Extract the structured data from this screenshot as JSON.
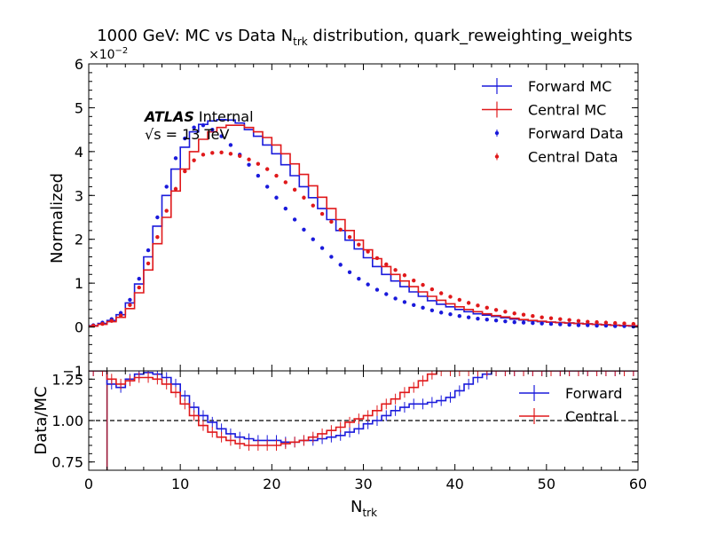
{
  "chart_data": {
    "type": "line",
    "title": "1000 GeV: MC vs Data N",
    "title_sub": "trk",
    "title_suffix": " distribution, quark_reweighting_weights",
    "x_label": "N",
    "x_label_sub": "trk",
    "atlas_label": "ATLAS",
    "atlas_suffix": "Internal",
    "energy_label": "√s = 13 TeV",
    "x_ticks": [
      "0",
      "10",
      "20",
      "30",
      "40",
      "50",
      "60"
    ],
    "xlim": [
      0,
      60
    ],
    "top_panel": {
      "ylabel": "Normalized",
      "y_multiplier": "×10",
      "y_multiplier_exp": "−2",
      "ylim": [
        -1,
        6
      ],
      "y_ticks": [
        "−1",
        "0",
        "1",
        "2",
        "3",
        "4",
        "5",
        "6"
      ],
      "legend_position": "top-right",
      "legend": [
        "Forward MC",
        "Central MC",
        "Forward Data",
        "Central Data"
      ],
      "series": [
        {
          "name": "Forward MC",
          "kind": "step",
          "color": "#1a1adb",
          "values": [
            0.03,
            0.08,
            0.15,
            0.28,
            0.55,
            0.98,
            1.6,
            2.3,
            3.0,
            3.6,
            4.1,
            4.45,
            4.62,
            4.7,
            4.73,
            4.72,
            4.65,
            4.5,
            4.35,
            4.15,
            3.95,
            3.7,
            3.45,
            3.2,
            2.95,
            2.7,
            2.45,
            2.2,
            1.98,
            1.78,
            1.58,
            1.38,
            1.2,
            1.05,
            0.92,
            0.8,
            0.7,
            0.6,
            0.52,
            0.46,
            0.4,
            0.35,
            0.3,
            0.27,
            0.24,
            0.21,
            0.18,
            0.16,
            0.14,
            0.12,
            0.11,
            0.1,
            0.09,
            0.08,
            0.07,
            0.06,
            0.05,
            0.04,
            0.03,
            0.02
          ]
        },
        {
          "name": "Central MC",
          "kind": "step",
          "color": "#e0191b",
          "values": [
            0.02,
            0.06,
            0.12,
            0.22,
            0.42,
            0.78,
            1.3,
            1.9,
            2.5,
            3.1,
            3.6,
            4.0,
            4.28,
            4.45,
            4.55,
            4.6,
            4.6,
            4.55,
            4.45,
            4.32,
            4.15,
            3.95,
            3.72,
            3.48,
            3.22,
            2.96,
            2.7,
            2.45,
            2.2,
            1.98,
            1.76,
            1.56,
            1.38,
            1.2,
            1.05,
            0.92,
            0.8,
            0.7,
            0.61,
            0.53,
            0.46,
            0.4,
            0.35,
            0.3,
            0.26,
            0.23,
            0.2,
            0.17,
            0.15,
            0.13,
            0.11,
            0.1,
            0.09,
            0.08,
            0.07,
            0.06,
            0.05,
            0.04,
            0.03,
            0.03
          ]
        },
        {
          "name": "Forward Data",
          "kind": "points",
          "color": "#1a1adb",
          "values": [
            0.04,
            0.1,
            0.18,
            0.32,
            0.62,
            1.1,
            1.75,
            2.5,
            3.2,
            3.85,
            4.3,
            4.55,
            4.6,
            4.5,
            4.35,
            4.15,
            3.93,
            3.7,
            3.45,
            3.2,
            2.95,
            2.7,
            2.45,
            2.22,
            2.0,
            1.8,
            1.6,
            1.42,
            1.25,
            1.1,
            0.97,
            0.85,
            0.75,
            0.65,
            0.57,
            0.5,
            0.44,
            0.38,
            0.33,
            0.29,
            0.25,
            0.22,
            0.19,
            0.17,
            0.15,
            0.13,
            0.11,
            0.1,
            0.09,
            0.08,
            0.07,
            0.06,
            0.05,
            0.04,
            0.04,
            0.03,
            0.03,
            0.02,
            0.02,
            0.01
          ]
        },
        {
          "name": "Central Data",
          "kind": "points",
          "color": "#e0191b",
          "values": [
            0.03,
            0.07,
            0.14,
            0.26,
            0.5,
            0.9,
            1.45,
            2.05,
            2.65,
            3.15,
            3.55,
            3.8,
            3.93,
            3.97,
            3.98,
            3.95,
            3.9,
            3.82,
            3.72,
            3.6,
            3.45,
            3.3,
            3.13,
            2.95,
            2.77,
            2.58,
            2.4,
            2.22,
            2.05,
            1.88,
            1.72,
            1.57,
            1.43,
            1.3,
            1.18,
            1.06,
            0.96,
            0.86,
            0.77,
            0.69,
            0.62,
            0.55,
            0.49,
            0.44,
            0.39,
            0.35,
            0.31,
            0.28,
            0.25,
            0.22,
            0.2,
            0.18,
            0.16,
            0.14,
            0.12,
            0.11,
            0.1,
            0.09,
            0.08,
            0.07
          ]
        }
      ]
    },
    "bottom_panel": {
      "ylabel": "Data/MC",
      "ylim": [
        0.7,
        1.3
      ],
      "y_ticks": [
        "0.75",
        "1.00",
        "1.25"
      ],
      "y_tick_values": [
        0.75,
        1.0,
        1.25
      ],
      "reference_line": 1.0,
      "legend_position": "right",
      "legend": [
        "Forward",
        "Central"
      ],
      "vertical_line_x": 2,
      "vertical_line_color": "#9b1b3a",
      "series": [
        {
          "name": "Forward",
          "kind": "step",
          "color": "#1a1adb",
          "values": [
            1.3,
            1.3,
            1.22,
            1.2,
            1.25,
            1.28,
            1.29,
            1.28,
            1.26,
            1.22,
            1.15,
            1.08,
            1.03,
            0.99,
            0.95,
            0.92,
            0.9,
            0.89,
            0.88,
            0.88,
            0.88,
            0.87,
            0.87,
            0.88,
            0.88,
            0.89,
            0.9,
            0.91,
            0.93,
            0.95,
            0.98,
            1.0,
            1.03,
            1.06,
            1.08,
            1.1,
            1.1,
            1.11,
            1.12,
            1.14,
            1.18,
            1.22,
            1.26,
            1.28,
            1.3,
            1.3,
            1.3,
            1.3,
            1.3,
            1.3,
            1.3,
            1.3,
            1.3,
            1.3,
            1.3,
            1.3,
            1.3,
            1.3,
            1.3,
            1.3
          ]
        },
        {
          "name": "Central",
          "kind": "step",
          "color": "#e0191b",
          "values": [
            1.3,
            1.3,
            1.25,
            1.22,
            1.24,
            1.26,
            1.26,
            1.25,
            1.22,
            1.17,
            1.1,
            1.03,
            0.97,
            0.93,
            0.9,
            0.88,
            0.86,
            0.85,
            0.85,
            0.85,
            0.85,
            0.86,
            0.87,
            0.88,
            0.9,
            0.92,
            0.94,
            0.96,
            0.99,
            1.01,
            1.03,
            1.06,
            1.1,
            1.13,
            1.17,
            1.2,
            1.24,
            1.28,
            1.3,
            1.3,
            1.3,
            1.3,
            1.3,
            1.3,
            1.3,
            1.3,
            1.3,
            1.3,
            1.3,
            1.3,
            1.3,
            1.3,
            1.3,
            1.3,
            1.3,
            1.3,
            1.3,
            1.3,
            1.3,
            1.3
          ]
        }
      ]
    }
  }
}
